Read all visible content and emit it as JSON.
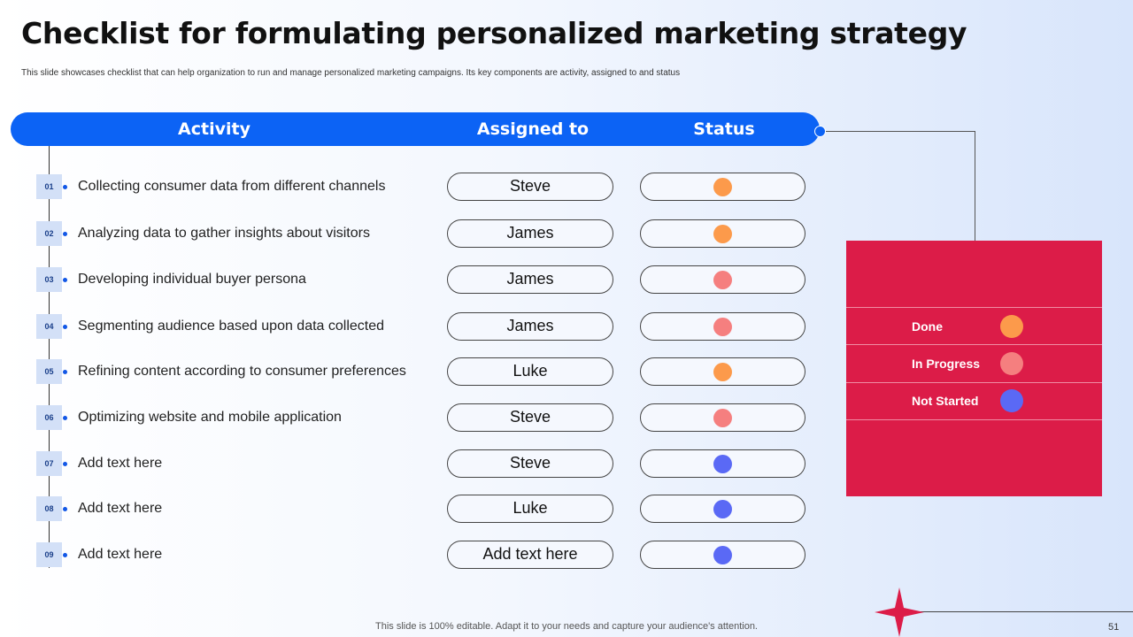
{
  "slide": {
    "title": "Checklist for formulating personalized marketing strategy",
    "subtitle": "This slide showcases checklist that can help organization to run and manage personalized marketing campaigns. Its key components are activity, assigned to and status",
    "footer": "This slide is 100% editable. Adapt it to your needs and capture your audience's attention.",
    "page_number": "51"
  },
  "table": {
    "headers": {
      "activity": "Activity",
      "assigned": "Assigned to",
      "status": "Status"
    },
    "rows": [
      {
        "num": "01",
        "activity": "Collecting consumer data from different channels",
        "assigned": "Steve",
        "status": "Done"
      },
      {
        "num": "02",
        "activity": "Analyzing data to gather insights about visitors",
        "assigned": "James",
        "status": "Done"
      },
      {
        "num": "03",
        "activity": "Developing individual buyer persona",
        "assigned": "James",
        "status": "In Progress"
      },
      {
        "num": "04",
        "activity": "Segmenting audience based upon data collected",
        "assigned": "James",
        "status": "In Progress"
      },
      {
        "num": "05",
        "activity": "Refining content according to consumer preferences",
        "assigned": "Luke",
        "status": "Done"
      },
      {
        "num": "06",
        "activity": "Optimizing website and mobile application",
        "assigned": "Steve",
        "status": "In Progress"
      },
      {
        "num": "07",
        "activity": "Add text here",
        "assigned": "Steve",
        "status": "Not Started"
      },
      {
        "num": "08",
        "activity": "Add text here",
        "assigned": "Luke",
        "status": "Not Started"
      },
      {
        "num": "09",
        "activity": "Add text here",
        "assigned": "Add text here",
        "status": "Not Started"
      }
    ]
  },
  "legend": {
    "items": [
      {
        "label": "Done",
        "color": "#fc9a4b"
      },
      {
        "label": "In Progress",
        "color": "#f57f7f"
      },
      {
        "label": "Not Started",
        "color": "#5a69f5"
      }
    ]
  },
  "colors": {
    "accent": "#0c63f5",
    "legend_bg": "#dc1c48",
    "star": "#dc1c48"
  }
}
